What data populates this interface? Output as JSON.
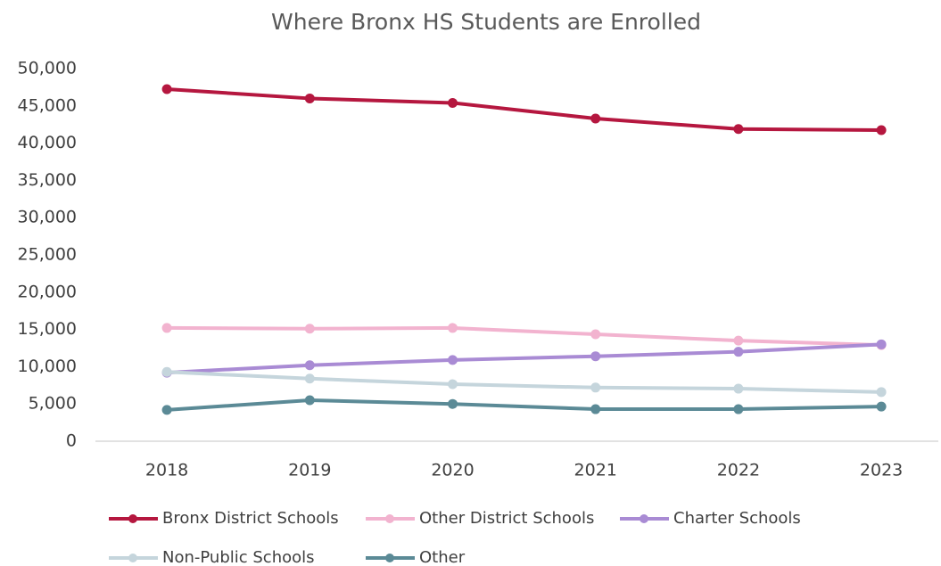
{
  "chart_data": {
    "type": "line",
    "title": "Where Bronx HS Students are Enrolled",
    "categories": [
      "2018",
      "2019",
      "2020",
      "2021",
      "2022",
      "2023"
    ],
    "series": [
      {
        "name": "Bronx District Schools",
        "color": "#b5173f",
        "values": [
          47250,
          46000,
          45400,
          43300,
          41900,
          41750
        ]
      },
      {
        "name": "Other District Schools",
        "color": "#f2b3cf",
        "values": [
          15200,
          15100,
          15200,
          14350,
          13500,
          12900
        ]
      },
      {
        "name": "Charter Schools",
        "color": "#a98bd4",
        "values": [
          9200,
          10200,
          10900,
          11400,
          12000,
          13000
        ]
      },
      {
        "name": "Non-Public Schools",
        "color": "#c5d5dc",
        "values": [
          9300,
          8400,
          7650,
          7200,
          7050,
          6600
        ]
      },
      {
        "name": "Other",
        "color": "#5b8a96",
        "values": [
          4200,
          5500,
          5000,
          4300,
          4300,
          4650
        ]
      }
    ],
    "ylim": [
      0,
      50000
    ],
    "yticks": [
      0,
      {
        "value": 5000,
        "label": "5,000"
      },
      {
        "value": 10000,
        "label": "10,000"
      },
      {
        "value": 15000,
        "label": "15,000"
      },
      {
        "value": 20000,
        "label": "20,000"
      },
      {
        "value": 25000,
        "label": "25,000"
      },
      {
        "value": 30000,
        "label": "30,000"
      },
      {
        "value": 35000,
        "label": "35,000"
      },
      {
        "value": 40000,
        "label": "40,000"
      },
      {
        "value": 45000,
        "label": "45,000"
      },
      {
        "value": 50000,
        "label": "50,000"
      }
    ],
    "grid": false,
    "legend": "bottom"
  }
}
